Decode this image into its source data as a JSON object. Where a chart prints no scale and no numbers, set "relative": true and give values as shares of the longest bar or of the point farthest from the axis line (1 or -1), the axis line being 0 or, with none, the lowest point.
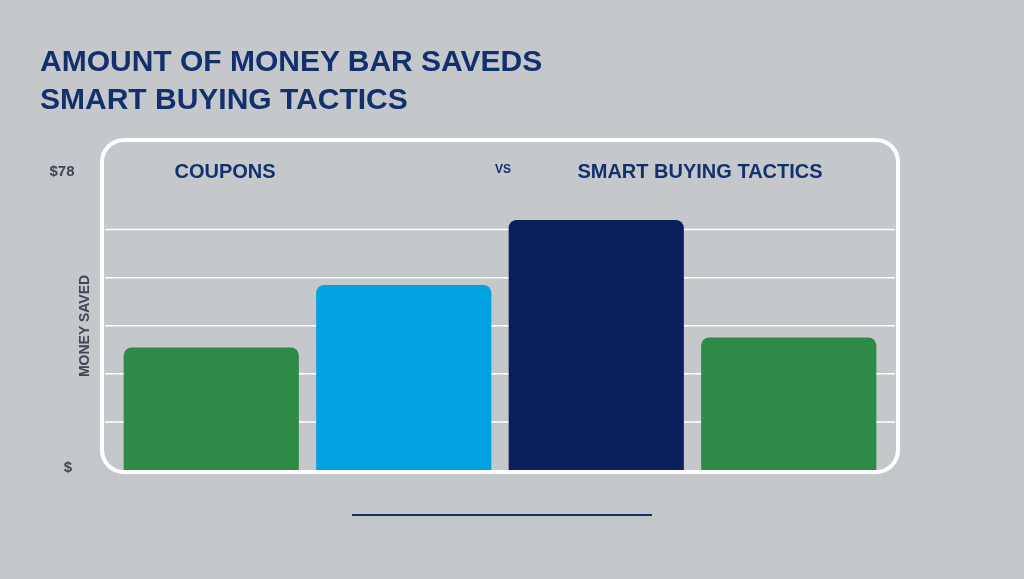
{
  "chart_data": {
    "type": "bar",
    "title": "AMOUNT OF MONEY BAR SAVEDS\nSMART BUYING TACTICS",
    "ylabel": "MONEY SAVED",
    "categories": [
      null,
      null,
      null,
      null
    ],
    "values": [
      0.49,
      0.74,
      1,
      0.53
    ],
    "colors": [
      "#2e8b47",
      "#00a3e0",
      "#0a1f5c",
      "#2e8b47"
    ],
    "relative": true,
    "grid": true,
    "legend": false,
    "annotations": [
      "$78",
      "$",
      "COUPONS",
      "VS",
      "SMART BUYING TACTICS"
    ]
  }
}
